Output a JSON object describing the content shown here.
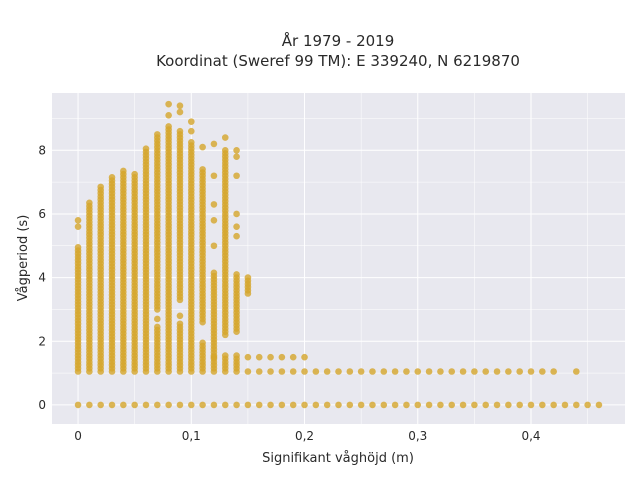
{
  "chart_data": {
    "type": "scatter",
    "title": "År 1979 - 2019",
    "subtitle": "Koordinat (Sweref 99 TM): E 339240, N 6219870",
    "xlabel": "Signifikant våghöjd (m)",
    "ylabel": "Vågperiod (s)",
    "xlim": [
      -0.023,
      0.483
    ],
    "ylim": [
      -0.6,
      9.8
    ],
    "x_ticks": [
      0,
      0.1,
      0.2,
      0.3,
      0.4
    ],
    "x_tick_labels": [
      "0",
      "0,1",
      "0,2",
      "0,3",
      "0,4"
    ],
    "y_ticks": [
      0,
      2,
      4,
      6,
      8
    ],
    "y_tick_labels": [
      "0",
      "2",
      "4",
      "6",
      "8"
    ],
    "grid": true,
    "background": "#e8e8ef",
    "marker_color": "#d4a52a",
    "series": [
      {
        "columns": [
          {
            "x": 0.0,
            "ranges": [
              [
                1.05,
                5.0
              ]
            ],
            "points": [
              0.0,
              5.6,
              5.8
            ]
          },
          {
            "x": 0.01,
            "ranges": [
              [
                1.05,
                6.4
              ]
            ],
            "points": [
              0.0
            ]
          },
          {
            "x": 0.02,
            "ranges": [
              [
                1.05,
                6.9
              ]
            ],
            "points": [
              0.0
            ]
          },
          {
            "x": 0.03,
            "ranges": [
              [
                1.05,
                7.2
              ]
            ],
            "points": [
              0.0
            ]
          },
          {
            "x": 0.04,
            "ranges": [
              [
                1.05,
                7.4
              ]
            ],
            "points": [
              0.0
            ]
          },
          {
            "x": 0.05,
            "ranges": [
              [
                1.05,
                7.3
              ]
            ],
            "points": [
              0.0
            ]
          },
          {
            "x": 0.06,
            "ranges": [
              [
                1.05,
                8.1
              ]
            ],
            "points": [
              0.0
            ]
          },
          {
            "x": 0.07,
            "ranges": [
              [
                1.05,
                2.5
              ],
              [
                3.0,
                8.5
              ]
            ],
            "points": [
              0.0,
              2.7
            ]
          },
          {
            "x": 0.08,
            "ranges": [
              [
                1.05,
                8.8
              ]
            ],
            "points": [
              0.0,
              9.1,
              9.45
            ]
          },
          {
            "x": 0.09,
            "ranges": [
              [
                1.05,
                2.6
              ],
              [
                3.3,
                8.6
              ]
            ],
            "points": [
              0.0,
              2.8,
              9.2,
              9.4
            ]
          },
          {
            "x": 0.1,
            "ranges": [
              [
                1.05,
                8.3
              ]
            ],
            "points": [
              0.0,
              8.6,
              8.9
            ]
          },
          {
            "x": 0.11,
            "ranges": [
              [
                1.05,
                2.0
              ],
              [
                2.6,
                7.4
              ]
            ],
            "points": [
              0.0,
              8.1
            ]
          },
          {
            "x": 0.12,
            "ranges": [
              [
                1.05,
                4.2
              ]
            ],
            "points": [
              0.0,
              1.5,
              5.0,
              5.8,
              6.3,
              7.2,
              8.2
            ]
          },
          {
            "x": 0.13,
            "ranges": [
              [
                1.05,
                1.55
              ],
              [
                2.2,
                8.0
              ]
            ],
            "points": [
              0.0,
              8.4
            ]
          },
          {
            "x": 0.14,
            "ranges": [
              [
                1.05,
                1.55
              ],
              [
                2.3,
                4.1
              ]
            ],
            "points": [
              0.0,
              5.3,
              5.6,
              6.0,
              7.2,
              7.8,
              8.0
            ]
          },
          {
            "x": 0.15,
            "ranges": [
              [
                3.5,
                4.0
              ]
            ],
            "points": [
              0.0,
              1.05,
              1.5
            ]
          },
          {
            "x": 0.16,
            "points": [
              0.0,
              1.05,
              1.5
            ]
          },
          {
            "x": 0.17,
            "points": [
              0.0,
              1.05,
              1.5
            ]
          },
          {
            "x": 0.18,
            "points": [
              0.0,
              1.05,
              1.5
            ]
          },
          {
            "x": 0.19,
            "points": [
              0.0,
              1.05,
              1.5
            ]
          },
          {
            "x": 0.2,
            "points": [
              0.0,
              1.05,
              1.5
            ]
          },
          {
            "x": 0.21,
            "points": [
              0.0,
              1.05
            ]
          },
          {
            "x": 0.22,
            "points": [
              0.0,
              1.05
            ]
          },
          {
            "x": 0.23,
            "points": [
              0.0,
              1.05
            ]
          },
          {
            "x": 0.24,
            "points": [
              0.0,
              1.05
            ]
          },
          {
            "x": 0.25,
            "points": [
              0.0,
              1.05
            ]
          },
          {
            "x": 0.26,
            "points": [
              0.0,
              1.05
            ]
          },
          {
            "x": 0.27,
            "points": [
              0.0,
              1.05
            ]
          },
          {
            "x": 0.28,
            "points": [
              0.0,
              1.05
            ]
          },
          {
            "x": 0.29,
            "points": [
              0.0,
              1.05
            ]
          },
          {
            "x": 0.3,
            "points": [
              0.0,
              1.05
            ]
          },
          {
            "x": 0.31,
            "points": [
              0.0,
              1.05
            ]
          },
          {
            "x": 0.32,
            "points": [
              0.0,
              1.05
            ]
          },
          {
            "x": 0.33,
            "points": [
              0.0,
              1.05
            ]
          },
          {
            "x": 0.34,
            "points": [
              0.0,
              1.05
            ]
          },
          {
            "x": 0.35,
            "points": [
              0.0,
              1.05
            ]
          },
          {
            "x": 0.36,
            "points": [
              0.0,
              1.05
            ]
          },
          {
            "x": 0.37,
            "points": [
              0.0,
              1.05
            ]
          },
          {
            "x": 0.38,
            "points": [
              0.0,
              1.05
            ]
          },
          {
            "x": 0.39,
            "points": [
              0.0,
              1.05
            ]
          },
          {
            "x": 0.4,
            "points": [
              0.0,
              1.05
            ]
          },
          {
            "x": 0.41,
            "points": [
              0.0,
              1.05
            ]
          },
          {
            "x": 0.42,
            "points": [
              0.0,
              1.05
            ]
          },
          {
            "x": 0.43,
            "points": [
              0.0
            ]
          },
          {
            "x": 0.44,
            "points": [
              0.0,
              1.05
            ]
          },
          {
            "x": 0.45,
            "points": [
              0.0
            ]
          },
          {
            "x": 0.46,
            "points": [
              0.0
            ]
          }
        ]
      }
    ]
  }
}
